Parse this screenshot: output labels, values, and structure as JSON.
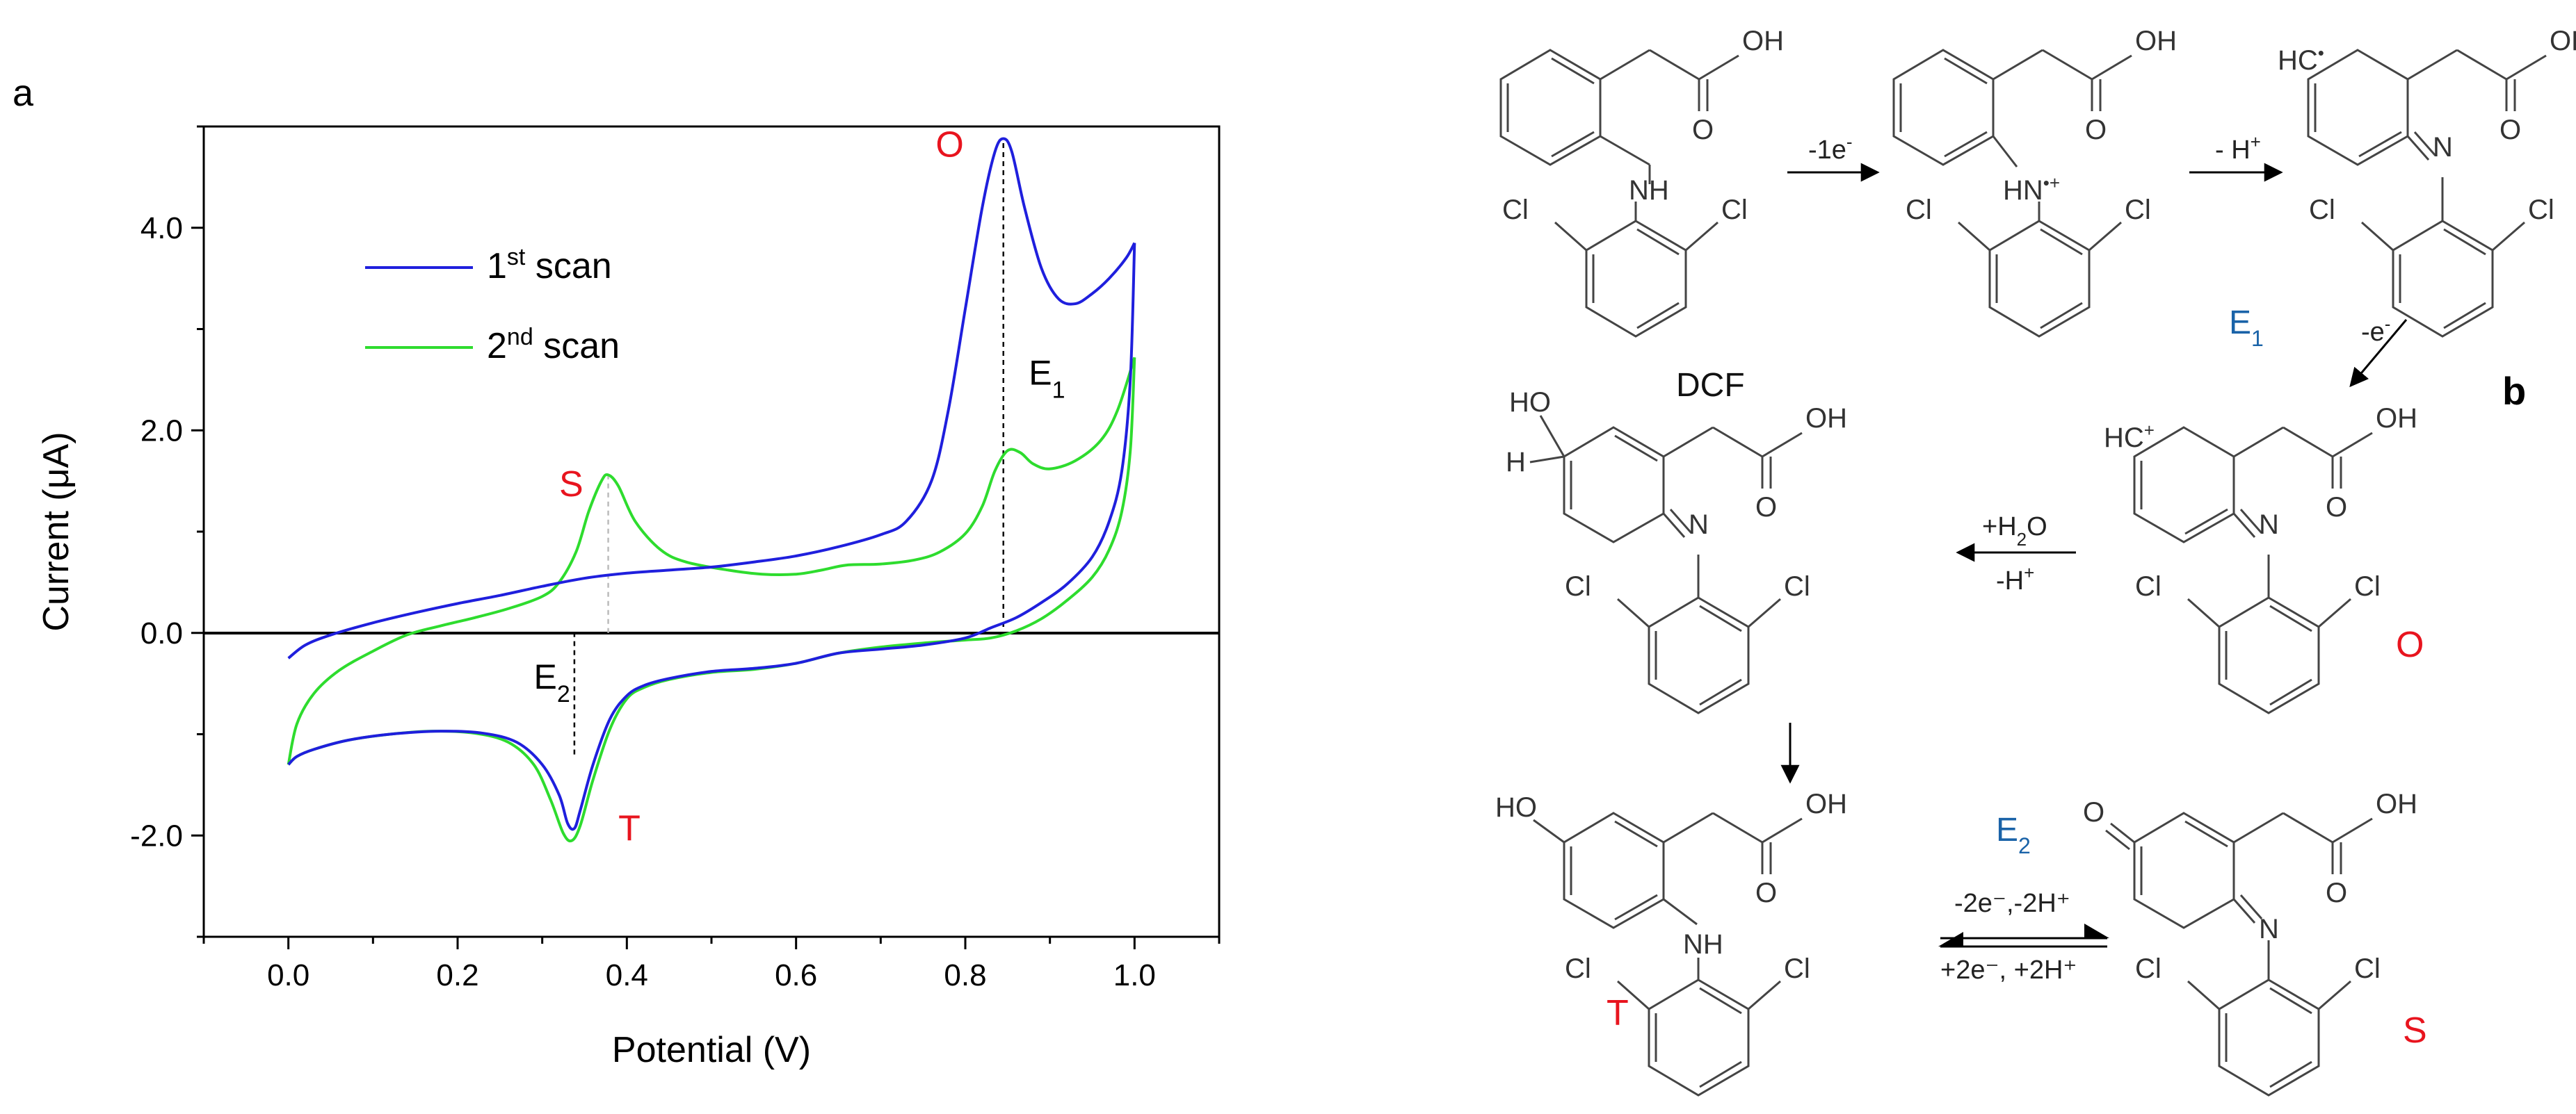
{
  "panel_a_label": "a",
  "panel_b_label": "b",
  "chart_data": {
    "type": "line",
    "xlabel": "Potential (V)",
    "ylabel": "Current (μA)",
    "xlim": [
      -0.1,
      1.1
    ],
    "ylim": [
      -3.0,
      5.0
    ],
    "x_ticks": [
      "0.0",
      "0.2",
      "0.4",
      "0.6",
      "0.8",
      "1.0"
    ],
    "y_ticks": [
      "-2.0",
      "0.0",
      "2.0",
      "4.0"
    ],
    "grid": false,
    "legend_placement": "upper-left",
    "legend": [
      {
        "base": "1",
        "sup": "st",
        "rest": " scan"
      },
      {
        "base": "2",
        "sup": "nd",
        "rest": " scan"
      }
    ],
    "series": [
      {
        "color": "#1f1fdd",
        "forward": [
          [
            0.0,
            -0.25
          ],
          [
            0.02,
            -0.12
          ],
          [
            0.05,
            -0.02
          ],
          [
            0.1,
            0.1
          ],
          [
            0.15,
            0.2
          ],
          [
            0.2,
            0.29
          ],
          [
            0.25,
            0.37
          ],
          [
            0.3,
            0.46
          ],
          [
            0.35,
            0.54
          ],
          [
            0.4,
            0.59
          ],
          [
            0.45,
            0.62
          ],
          [
            0.5,
            0.65
          ],
          [
            0.55,
            0.7
          ],
          [
            0.6,
            0.76
          ],
          [
            0.65,
            0.85
          ],
          [
            0.7,
            0.97
          ],
          [
            0.73,
            1.1
          ],
          [
            0.76,
            1.5
          ],
          [
            0.78,
            2.2
          ],
          [
            0.8,
            3.2
          ],
          [
            0.82,
            4.2
          ],
          [
            0.835,
            4.75
          ],
          [
            0.845,
            4.88
          ],
          [
            0.855,
            4.75
          ],
          [
            0.87,
            4.2
          ],
          [
            0.89,
            3.6
          ],
          [
            0.91,
            3.3
          ],
          [
            0.93,
            3.25
          ],
          [
            0.95,
            3.35
          ],
          [
            0.97,
            3.5
          ],
          [
            0.99,
            3.7
          ],
          [
            1.0,
            3.85
          ]
        ],
        "reverse": [
          [
            1.0,
            3.85
          ],
          [
            0.995,
            2.5
          ],
          [
            0.985,
            1.6
          ],
          [
            0.97,
            1.1
          ],
          [
            0.95,
            0.75
          ],
          [
            0.92,
            0.48
          ],
          [
            0.89,
            0.3
          ],
          [
            0.86,
            0.15
          ],
          [
            0.83,
            0.05
          ],
          [
            0.8,
            -0.05
          ],
          [
            0.75,
            -0.12
          ],
          [
            0.7,
            -0.16
          ],
          [
            0.65,
            -0.2
          ],
          [
            0.6,
            -0.3
          ],
          [
            0.55,
            -0.35
          ],
          [
            0.5,
            -0.38
          ],
          [
            0.45,
            -0.45
          ],
          [
            0.42,
            -0.52
          ],
          [
            0.4,
            -0.62
          ],
          [
            0.38,
            -0.85
          ],
          [
            0.36,
            -1.3
          ],
          [
            0.345,
            -1.75
          ],
          [
            0.338,
            -1.93
          ],
          [
            0.33,
            -1.88
          ],
          [
            0.32,
            -1.6
          ],
          [
            0.3,
            -1.3
          ],
          [
            0.27,
            -1.08
          ],
          [
            0.23,
            -0.99
          ],
          [
            0.18,
            -0.97
          ],
          [
            0.12,
            -1.0
          ],
          [
            0.07,
            -1.06
          ],
          [
            0.03,
            -1.15
          ],
          [
            0.01,
            -1.22
          ],
          [
            0.0,
            -1.3
          ]
        ]
      },
      {
        "color": "#2edc2e",
        "forward": [
          [
            0.0,
            -1.3
          ],
          [
            0.01,
            -0.9
          ],
          [
            0.03,
            -0.6
          ],
          [
            0.06,
            -0.37
          ],
          [
            0.1,
            -0.18
          ],
          [
            0.14,
            -0.02
          ],
          [
            0.18,
            0.07
          ],
          [
            0.22,
            0.15
          ],
          [
            0.26,
            0.24
          ],
          [
            0.3,
            0.36
          ],
          [
            0.32,
            0.5
          ],
          [
            0.34,
            0.8
          ],
          [
            0.355,
            1.2
          ],
          [
            0.37,
            1.5
          ],
          [
            0.378,
            1.56
          ],
          [
            0.39,
            1.45
          ],
          [
            0.41,
            1.1
          ],
          [
            0.44,
            0.82
          ],
          [
            0.47,
            0.7
          ],
          [
            0.52,
            0.62
          ],
          [
            0.56,
            0.58
          ],
          [
            0.6,
            0.58
          ],
          [
            0.63,
            0.62
          ],
          [
            0.66,
            0.67
          ],
          [
            0.7,
            0.68
          ],
          [
            0.74,
            0.72
          ],
          [
            0.77,
            0.8
          ],
          [
            0.8,
            0.98
          ],
          [
            0.82,
            1.25
          ],
          [
            0.835,
            1.6
          ],
          [
            0.85,
            1.8
          ],
          [
            0.865,
            1.78
          ],
          [
            0.88,
            1.67
          ],
          [
            0.9,
            1.62
          ],
          [
            0.93,
            1.7
          ],
          [
            0.96,
            1.9
          ],
          [
            0.98,
            2.2
          ],
          [
            1.0,
            2.72
          ]
        ],
        "reverse": [
          [
            1.0,
            2.72
          ],
          [
            0.995,
            1.8
          ],
          [
            0.985,
            1.2
          ],
          [
            0.97,
            0.82
          ],
          [
            0.95,
            0.55
          ],
          [
            0.92,
            0.32
          ],
          [
            0.89,
            0.14
          ],
          [
            0.86,
            0.02
          ],
          [
            0.83,
            -0.05
          ],
          [
            0.8,
            -0.07
          ],
          [
            0.75,
            -0.1
          ],
          [
            0.7,
            -0.14
          ],
          [
            0.65,
            -0.2
          ],
          [
            0.6,
            -0.3
          ],
          [
            0.55,
            -0.36
          ],
          [
            0.5,
            -0.39
          ],
          [
            0.45,
            -0.46
          ],
          [
            0.42,
            -0.54
          ],
          [
            0.4,
            -0.65
          ],
          [
            0.38,
            -0.95
          ],
          [
            0.36,
            -1.45
          ],
          [
            0.345,
            -1.9
          ],
          [
            0.335,
            -2.05
          ],
          [
            0.325,
            -1.98
          ],
          [
            0.31,
            -1.65
          ],
          [
            0.29,
            -1.3
          ],
          [
            0.26,
            -1.08
          ],
          [
            0.22,
            -0.99
          ],
          [
            0.17,
            -0.97
          ],
          [
            0.12,
            -1.0
          ],
          [
            0.07,
            -1.06
          ],
          [
            0.03,
            -1.15
          ],
          [
            0.01,
            -1.22
          ],
          [
            0.0,
            -1.3
          ]
        ]
      }
    ],
    "annotations": {
      "O": {
        "text": "O",
        "color": "#e8141e",
        "at": [
          0.765,
          4.7
        ]
      },
      "S": {
        "text": "S",
        "color": "#e8141e",
        "at": [
          0.32,
          1.35
        ]
      },
      "T": {
        "text": "T",
        "color": "#e8141e",
        "at": [
          0.39,
          -2.05
        ]
      },
      "E1": {
        "base": "E",
        "sub": "1",
        "at": [
          0.875,
          2.45
        ]
      },
      "E2": {
        "base": "E",
        "sub": "2",
        "at": [
          0.29,
          -0.55
        ]
      }
    },
    "dashed_lines": [
      {
        "x": 0.845,
        "y1": 0.06,
        "y2": 4.88,
        "color": "#000000"
      },
      {
        "x": 0.338,
        "y1": -1.2,
        "y2": 0.0,
        "color": "#000000"
      },
      {
        "x": 0.378,
        "y1": 0.0,
        "y2": 1.56,
        "color": "#bbbbbb"
      }
    ]
  },
  "scheme": {
    "atoms": {
      "oh": "OH",
      "o": "O",
      "nh": "NH",
      "n": "N",
      "cl": "Cl",
      "hc": "HC",
      "ho": "HO",
      "h": "H",
      "hn_radical": "HN",
      "dot": "•",
      "plus": "+",
      "o_eq": "O"
    },
    "labels": {
      "dcf": "DCF",
      "E1": {
        "base": "E",
        "sub": "1"
      },
      "E2": {
        "base": "E",
        "sub": "2"
      },
      "O": "O",
      "T": "T",
      "S": "S"
    },
    "arrows": {
      "a1": {
        "base": "-1e",
        "sup": "-"
      },
      "a2": {
        "base": "- H",
        "sup": "+"
      },
      "a3": {
        "base": "-e",
        "sup": "-"
      },
      "a4_top": {
        "base": "+H",
        "sub": "2",
        "rest": "O"
      },
      "a4_bottom": {
        "base": "-H",
        "sup": "+"
      },
      "eq_top": "-2e⁻,-2H⁺",
      "eq_bottom": "+2e⁻, +2H⁺"
    }
  }
}
